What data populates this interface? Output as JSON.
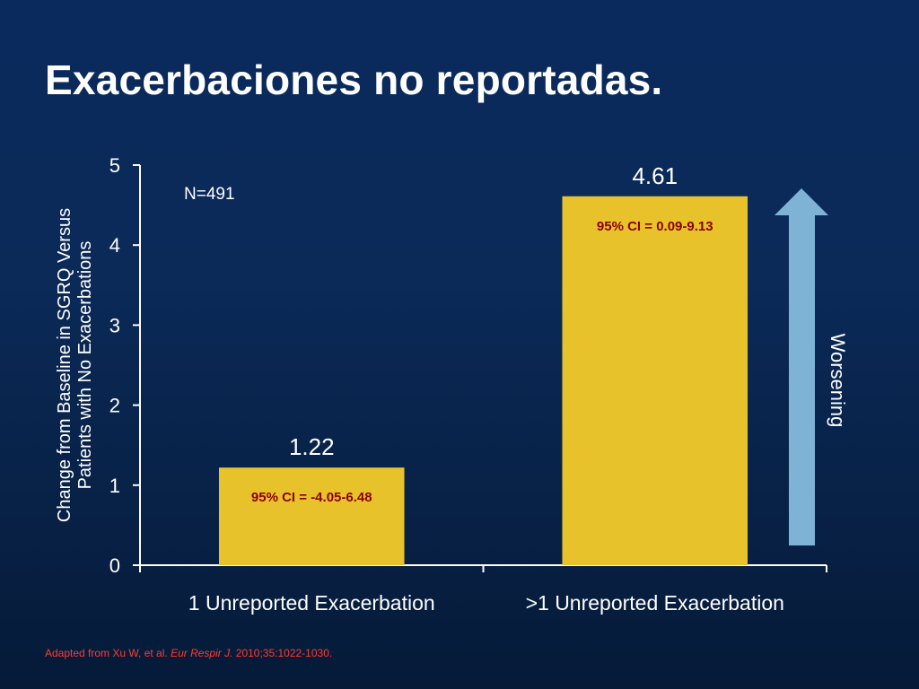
{
  "slide": {
    "title": "Exacerbaciones no reportadas."
  },
  "chart_data": {
    "type": "bar",
    "categories": [
      "1 Unreported Exacerbation",
      ">1 Unreported Exacerbation"
    ],
    "values": [
      1.22,
      4.61
    ],
    "value_labels": [
      "1.22",
      "4.61"
    ],
    "ci_labels": [
      "95% CI = -4.05-6.48",
      "95% CI = 0.09-9.13"
    ],
    "ylabel": "Change from Baseline in SGRQ Versus Patients with No Exacerbations",
    "ylabel_lines": [
      "Change from Baseline in SGRQ Versus",
      "Patients with No Exacerbations"
    ],
    "ylim": [
      0,
      5
    ],
    "yticks": [
      0,
      1,
      2,
      3,
      4,
      5
    ],
    "annotation": "N=491",
    "arrow_label": "Worsening",
    "grid": false,
    "colors": {
      "bar": "#e8c22a",
      "ci_text": "#8b0000",
      "arrow": "#7fb3d5",
      "axis": "#ffffff"
    }
  },
  "footnote": {
    "prefix": "Adapted  from Xu W, et al. ",
    "journal": "Eur Respir J.",
    "suffix": " 2010;35:1022-1030."
  }
}
